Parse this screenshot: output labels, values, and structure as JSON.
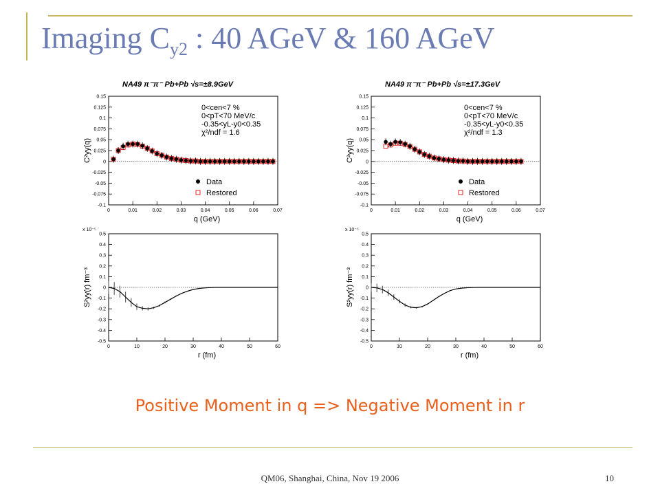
{
  "slide": {
    "title": "Imaging C",
    "title_sub": "y2",
    "title_rest": " : 40 AGeV & 160 AGeV",
    "message": "Positive Moment in q => Negative Moment in r",
    "footer": "QM06, Shanghai, China, Nov 19 2006",
    "page_number": "10",
    "accent_color": "#c8b45a",
    "title_color": "#6a7bb3",
    "message_color": "#e8601c"
  },
  "chart_data": [
    {
      "type": "scatter",
      "title": "NA49 π⁻π⁻ Pb+Pb √s=±8.9GeV",
      "xlabel": "q (GeV)",
      "ylabel": "C²yy(q)",
      "xlim": [
        0,
        0.07
      ],
      "ylim": [
        -0.1,
        0.15
      ],
      "xticks": [
        0,
        0.01,
        0.02,
        0.03,
        0.04,
        0.05,
        0.06,
        0.07
      ],
      "yticks": [
        -0.1,
        -0.075,
        -0.05,
        -0.025,
        0,
        0.025,
        0.05,
        0.075,
        0.1,
        0.125,
        0.15
      ],
      "annotations": [
        "0<cen<7 %",
        "0<pT<70 MeV/c",
        "-0.35<yL-y0<0.35",
        "χ²/ndf = 1.6"
      ],
      "legend": [
        "Data",
        "Restored"
      ],
      "series": [
        {
          "name": "Data",
          "x": [
            0.002,
            0.004,
            0.006,
            0.008,
            0.01,
            0.012,
            0.014,
            0.016,
            0.018,
            0.02,
            0.022,
            0.024,
            0.026,
            0.028,
            0.03,
            0.032,
            0.034,
            0.036,
            0.038,
            0.04,
            0.042,
            0.044,
            0.046,
            0.048,
            0.05,
            0.052,
            0.054,
            0.056,
            0.058,
            0.06,
            0.062,
            0.064,
            0.066,
            0.068
          ],
          "y": [
            0.005,
            0.025,
            0.035,
            0.04,
            0.04,
            0.04,
            0.036,
            0.03,
            0.024,
            0.018,
            0.014,
            0.01,
            0.007,
            0.005,
            0.003,
            0.002,
            0.001,
            0.001,
            0.0,
            0.0,
            0.0,
            0.0,
            0.0,
            0.0,
            0.0,
            0.0,
            0.0,
            0.0,
            0.0,
            0.0,
            0.0,
            0.0,
            0.0,
            0.0
          ]
        },
        {
          "name": "Restored",
          "x": [
            0.002,
            0.004,
            0.006,
            0.008,
            0.01,
            0.012,
            0.014,
            0.016,
            0.018,
            0.02,
            0.022,
            0.024,
            0.026,
            0.028,
            0.03,
            0.032,
            0.034,
            0.036,
            0.038,
            0.04,
            0.042,
            0.044,
            0.046,
            0.048,
            0.05,
            0.052,
            0.054,
            0.056,
            0.058,
            0.06,
            0.062,
            0.064,
            0.066,
            0.068
          ],
          "y": [
            0.005,
            0.025,
            0.032,
            0.038,
            0.04,
            0.039,
            0.035,
            0.03,
            0.024,
            0.018,
            0.014,
            0.01,
            0.007,
            0.005,
            0.003,
            0.002,
            0.001,
            0.001,
            0.0,
            0.0,
            0.0,
            0.0,
            0.0,
            0.0,
            0.0,
            0.0,
            0.0,
            0.0,
            0.0,
            0.0,
            0.0,
            0.0,
            0.0,
            0.0
          ]
        }
      ]
    },
    {
      "type": "scatter",
      "title": "NA49 π⁻π⁻ Pb+Pb √s=±17.3GeV",
      "xlabel": "q (GeV)",
      "ylabel": "C²yy(q)",
      "xlim": [
        0,
        0.07
      ],
      "ylim": [
        -0.1,
        0.15
      ],
      "xticks": [
        0,
        0.01,
        0.02,
        0.03,
        0.04,
        0.05,
        0.06,
        0.07
      ],
      "yticks": [
        -0.1,
        -0.075,
        -0.05,
        -0.025,
        0,
        0.025,
        0.05,
        0.075,
        0.1,
        0.125,
        0.15
      ],
      "annotations": [
        "0<cen<7 %",
        "0<pT<70 MeV/c",
        "-0.35<yL-y0<0.35",
        "χ²/ndf = 1.3"
      ],
      "legend": [
        "Data",
        "Restored"
      ],
      "series": [
        {
          "name": "Data",
          "x": [
            0.006,
            0.008,
            0.01,
            0.012,
            0.014,
            0.016,
            0.018,
            0.02,
            0.022,
            0.024,
            0.026,
            0.028,
            0.03,
            0.032,
            0.034,
            0.036,
            0.038,
            0.04,
            0.042,
            0.044,
            0.046,
            0.048,
            0.05,
            0.052,
            0.054,
            0.056,
            0.058,
            0.06,
            0.062
          ],
          "y": [
            0.045,
            0.04,
            0.045,
            0.044,
            0.04,
            0.035,
            0.028,
            0.022,
            0.016,
            0.012,
            0.008,
            0.006,
            0.004,
            0.003,
            0.002,
            0.001,
            0.001,
            0.0,
            0.0,
            0.0,
            0.0,
            0.0,
            0.0,
            0.0,
            0.0,
            0.0,
            0.0,
            0.0,
            0.0
          ]
        },
        {
          "name": "Restored",
          "x": [
            0.006,
            0.008,
            0.01,
            0.012,
            0.014,
            0.016,
            0.018,
            0.02,
            0.022,
            0.024,
            0.026,
            0.028,
            0.03,
            0.032,
            0.034,
            0.036,
            0.038,
            0.04,
            0.042,
            0.044,
            0.046,
            0.048,
            0.05,
            0.052,
            0.054,
            0.056,
            0.058,
            0.06,
            0.062
          ],
          "y": [
            0.035,
            0.038,
            0.042,
            0.042,
            0.039,
            0.034,
            0.028,
            0.022,
            0.016,
            0.012,
            0.008,
            0.006,
            0.004,
            0.003,
            0.002,
            0.001,
            0.001,
            0.0,
            0.0,
            0.0,
            0.0,
            0.0,
            0.0,
            0.0,
            0.0,
            0.0,
            0.0,
            0.0,
            0.0
          ]
        }
      ]
    },
    {
      "type": "line",
      "title": "",
      "xlabel": "r (fm)",
      "ylabel": "S²yy(r) fm⁻³",
      "scale_note": "x 10⁻⁵",
      "xlim": [
        0,
        60
      ],
      "ylim": [
        -0.5,
        0.5
      ],
      "xticks": [
        0,
        10,
        20,
        30,
        40,
        50,
        60
      ],
      "yticks": [
        -0.5,
        -0.4,
        -0.3,
        -0.2,
        -0.1,
        0,
        0.1,
        0.2,
        0.3,
        0.4,
        0.5
      ],
      "series": [
        {
          "name": "",
          "x": [
            0,
            2,
            4,
            6,
            8,
            10,
            12,
            14,
            16,
            18,
            20,
            22,
            24,
            26,
            28,
            30,
            32,
            34,
            36,
            38,
            40,
            42,
            44,
            46,
            48,
            50,
            52,
            54,
            56,
            58,
            60
          ],
          "y": [
            0.0,
            -0.01,
            -0.04,
            -0.09,
            -0.14,
            -0.18,
            -0.195,
            -0.2,
            -0.19,
            -0.17,
            -0.14,
            -0.11,
            -0.08,
            -0.055,
            -0.035,
            -0.02,
            -0.01,
            -0.005,
            -0.002,
            0.0,
            0.0,
            0.0,
            0.0,
            0.0,
            0.0,
            0.0,
            0.0,
            0.0,
            0.0,
            0.0,
            0.0
          ],
          "err": [
            0.06,
            0.06,
            0.055,
            0.05,
            0.04,
            0.03,
            0.02,
            0.015,
            0.01,
            0.01,
            0.008,
            0.006,
            0.005,
            0.004,
            0.003,
            0.003,
            0.002,
            0.002,
            0.002,
            0.002,
            0.002,
            0.002,
            0.002,
            0.002,
            0.002,
            0.002,
            0.002,
            0.002,
            0.002,
            0.002,
            0.002
          ]
        }
      ]
    },
    {
      "type": "line",
      "title": "",
      "xlabel": "r (fm)",
      "ylabel": "S²yy(r) fm⁻³",
      "scale_note": "x 10⁻⁵",
      "xlim": [
        0,
        60
      ],
      "ylim": [
        -0.5,
        0.5
      ],
      "xticks": [
        0,
        10,
        20,
        30,
        40,
        50,
        60
      ],
      "yticks": [
        -0.5,
        -0.4,
        -0.3,
        -0.2,
        -0.1,
        0,
        0.1,
        0.2,
        0.3,
        0.4,
        0.5
      ],
      "series": [
        {
          "name": "",
          "x": [
            0,
            2,
            4,
            6,
            8,
            10,
            12,
            14,
            16,
            18,
            20,
            22,
            24,
            26,
            28,
            30,
            32,
            34,
            36,
            38,
            40,
            42,
            44,
            46,
            48,
            50,
            52,
            54,
            56,
            58,
            60
          ],
          "y": [
            0.0,
            -0.005,
            -0.02,
            -0.05,
            -0.09,
            -0.13,
            -0.165,
            -0.185,
            -0.19,
            -0.18,
            -0.155,
            -0.12,
            -0.085,
            -0.055,
            -0.03,
            -0.015,
            -0.007,
            -0.003,
            -0.001,
            0.0,
            0.0,
            0.0,
            0.0,
            0.0,
            0.0,
            0.0,
            0.0,
            0.0,
            0.0,
            0.0,
            0.0
          ],
          "err": [
            0.04,
            0.04,
            0.035,
            0.03,
            0.025,
            0.02,
            0.015,
            0.01,
            0.008,
            0.007,
            0.006,
            0.005,
            0.004,
            0.003,
            0.003,
            0.002,
            0.002,
            0.002,
            0.002,
            0.002,
            0.002,
            0.002,
            0.002,
            0.002,
            0.002,
            0.002,
            0.002,
            0.002,
            0.002,
            0.002,
            0.002
          ]
        }
      ]
    }
  ]
}
